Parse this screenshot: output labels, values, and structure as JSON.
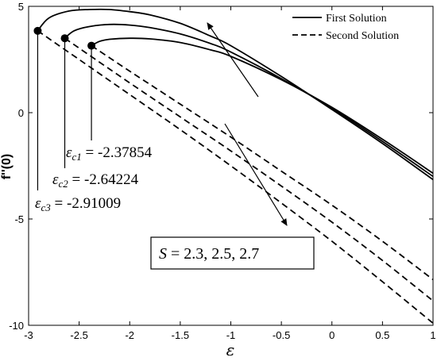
{
  "chart_data": {
    "type": "line",
    "title": "",
    "xlabel": "ε",
    "ylabel": "f''(0)",
    "xlim": [
      -3,
      1
    ],
    "ylim": [
      -10,
      5
    ],
    "xticks": [
      -3,
      -2.5,
      -2,
      -1.5,
      -1,
      -0.5,
      0,
      0.5,
      1
    ],
    "xtick_labels": [
      "-3",
      "-2.5",
      "-2",
      "-1.5",
      "-1",
      "-0.5",
      "0",
      "0.5",
      "1"
    ],
    "yticks": [
      -10,
      -5,
      0,
      5
    ],
    "ytick_labels": [
      "-10",
      "-5",
      "0",
      "5"
    ],
    "grid": false,
    "legend_position": "top-right",
    "legend": [
      {
        "label": "First Solution",
        "style": "solid"
      },
      {
        "label": "Second Solution",
        "style": "dashed"
      }
    ],
    "series": [
      {
        "group": "first",
        "style": "solid",
        "S": 2.3,
        "x": [
          -2.3785,
          -2.3,
          -2.2,
          -2.0,
          -1.8,
          -1.5,
          -1.2,
          -1.0,
          -0.5,
          0.0,
          0.5,
          1.0
        ],
        "y": [
          3.15,
          3.35,
          3.45,
          3.5,
          3.47,
          3.3,
          2.95,
          2.65,
          1.55,
          0.25,
          -1.25,
          -2.85
        ]
      },
      {
        "group": "first",
        "style": "solid",
        "S": 2.5,
        "x": [
          -2.6422,
          -2.55,
          -2.4,
          -2.2,
          -2.0,
          -1.8,
          -1.5,
          -1.2,
          -1.0,
          -0.5,
          0.0,
          0.5,
          1.0
        ],
        "y": [
          3.5,
          3.85,
          4.05,
          4.15,
          4.12,
          4.0,
          3.7,
          3.25,
          2.85,
          1.6,
          0.2,
          -1.35,
          -3.0
        ]
      },
      {
        "group": "first",
        "style": "solid",
        "S": 2.7,
        "x": [
          -2.9101,
          -2.8,
          -2.6,
          -2.4,
          -2.2,
          -2.0,
          -1.8,
          -1.5,
          -1.2,
          -1.0,
          -0.5,
          0.0,
          0.5,
          1.0
        ],
        "y": [
          3.85,
          4.45,
          4.78,
          4.85,
          4.85,
          4.75,
          4.6,
          4.2,
          3.6,
          3.15,
          1.7,
          0.15,
          -1.45,
          -3.15
        ]
      },
      {
        "group": "second",
        "style": "dashed",
        "S": 2.3,
        "x": [
          -2.3785,
          -2.0,
          -1.5,
          -1.0,
          -0.5,
          0.0,
          0.5,
          1.0
        ],
        "y": [
          3.15,
          1.95,
          0.4,
          -1.15,
          -2.75,
          -4.35,
          -6.05,
          -7.85
        ]
      },
      {
        "group": "second",
        "style": "dashed",
        "S": 2.5,
        "x": [
          -2.6422,
          -2.0,
          -1.5,
          -1.0,
          -0.5,
          0.0,
          0.5,
          1.0
        ],
        "y": [
          3.5,
          1.4,
          -0.2,
          -1.8,
          -3.45,
          -5.15,
          -6.95,
          -8.85
        ]
      },
      {
        "group": "second",
        "style": "dashed",
        "S": 2.7,
        "x": [
          -2.9101,
          -2.5,
          -2.0,
          -1.5,
          -1.0,
          -0.5,
          0.0,
          0.5,
          1.0
        ],
        "y": [
          3.85,
          2.5,
          0.85,
          -0.8,
          -2.5,
          -4.25,
          -6.05,
          -7.95,
          -9.9
        ]
      }
    ],
    "critical_points": [
      {
        "x": -2.37854,
        "y": 3.15
      },
      {
        "x": -2.64224,
        "y": 3.5
      },
      {
        "x": -2.91009,
        "y": 3.85
      }
    ],
    "annotations": {
      "critical": [
        {
          "symbol": "ε",
          "sub": "c1",
          "value": " = -2.37854"
        },
        {
          "symbol": "ε",
          "sub": "c2",
          "value": " = -2.64224"
        },
        {
          "symbol": "ε",
          "sub": "c3",
          "value": " = -2.91009"
        }
      ],
      "box_symbol": "S",
      "box_value": " = 2.3, 2.5, 2.7"
    }
  }
}
